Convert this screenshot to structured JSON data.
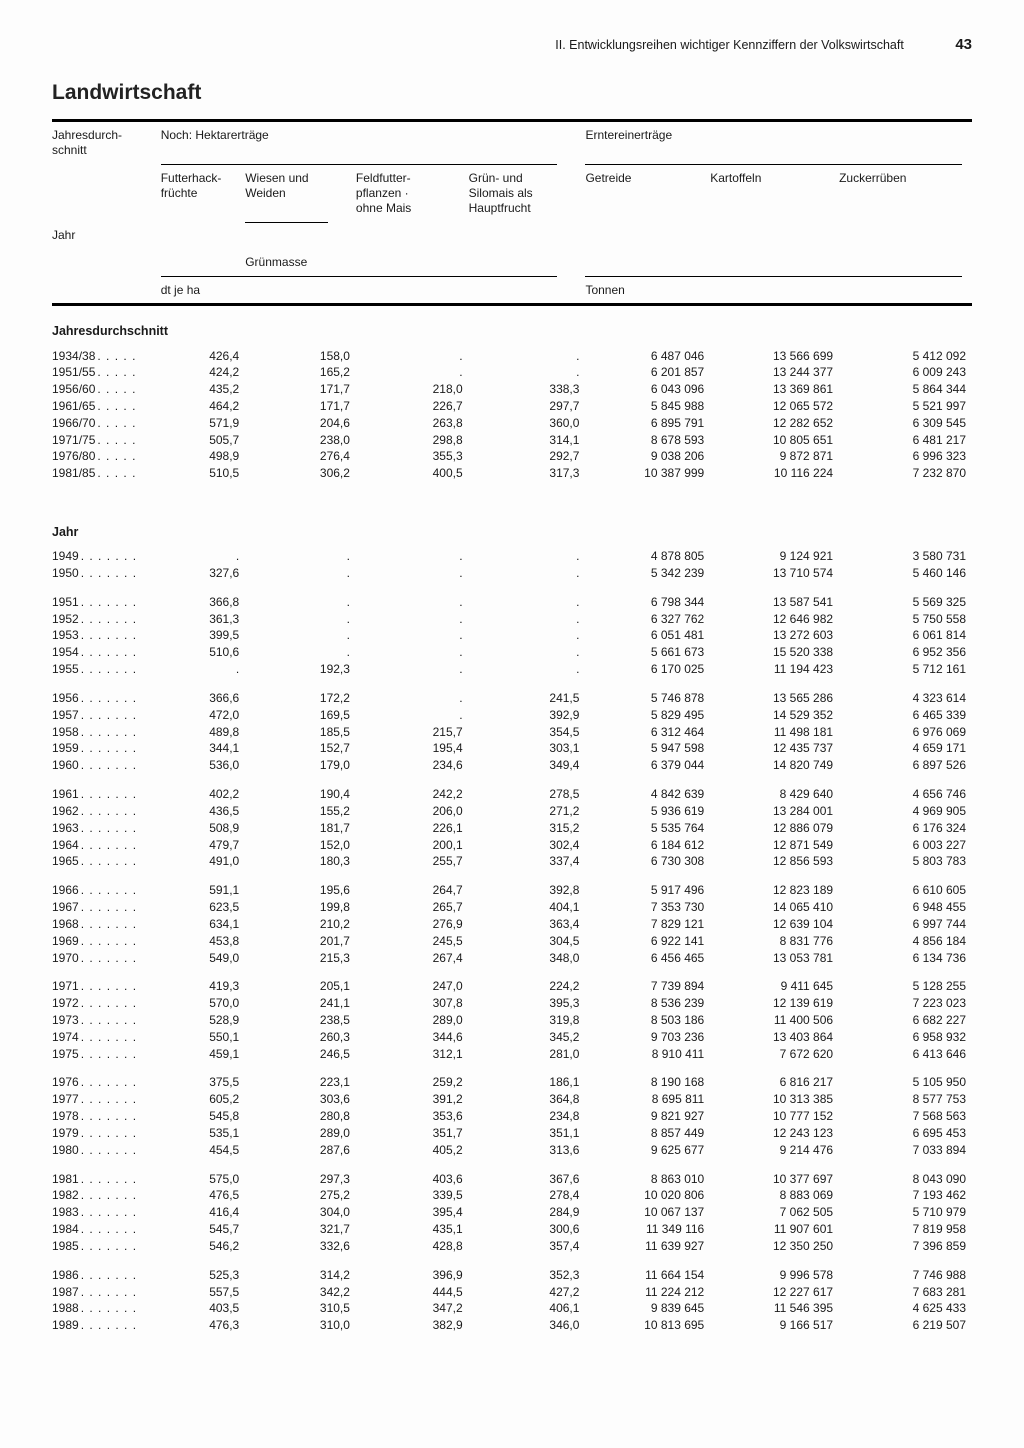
{
  "page": {
    "running_head": "II. Entwicklungsreihen wichtiger Kennziffern der Volkswirtschaft",
    "page_number": "43",
    "title": "Landwirtschaft"
  },
  "headers": {
    "period_label": "Jahresdurch-\nschnitt",
    "year_label": "Jahr",
    "group_left": "Noch: Hektarerträge",
    "group_right": "Erntereinerträge",
    "c1": "Futterhack-\nfrüchte",
    "c2": "Wiesen und\nWeiden",
    "c3": "Feldfutter-\npflanzen ·\nohne Mais",
    "c4": "Grün- und\nSilomais als\nHauptfrucht",
    "c5": "Getreide",
    "c6": "Kartoffeln",
    "c7": "Zuckerrüben",
    "sub2": "Grünmasse",
    "unit_left": "dt je ha",
    "unit_right": "Tonnen"
  },
  "section1": "Jahresdurchschnitt",
  "section2": "Jahr",
  "periods": [
    {
      "label": "1934/38",
      "c1": "426,4",
      "c2": "158,0",
      "c3": ".",
      "c4": ".",
      "c5": "6 487 046",
      "c6": "13 566 699",
      "c7": "5 412 092"
    },
    {
      "label": "1951/55",
      "c1": "424,2",
      "c2": "165,2",
      "c3": ".",
      "c4": ".",
      "c5": "6 201 857",
      "c6": "13 244 377",
      "c7": "6 009 243"
    },
    {
      "label": "1956/60",
      "c1": "435,2",
      "c2": "171,7",
      "c3": "218,0",
      "c4": "338,3",
      "c5": "6 043 096",
      "c6": "13 369 861",
      "c7": "5 864 344"
    },
    {
      "label": "1961/65",
      "c1": "464,2",
      "c2": "171,7",
      "c3": "226,7",
      "c4": "297,7",
      "c5": "5 845 988",
      "c6": "12 065 572",
      "c7": "5 521 997"
    },
    {
      "label": "1966/70",
      "c1": "571,9",
      "c2": "204,6",
      "c3": "263,8",
      "c4": "360,0",
      "c5": "6 895 791",
      "c6": "12 282 652",
      "c7": "6 309 545"
    },
    {
      "label": "1971/75",
      "c1": "505,7",
      "c2": "238,0",
      "c3": "298,8",
      "c4": "314,1",
      "c5": "8 678 593",
      "c6": "10 805 651",
      "c7": "6 481 217"
    },
    {
      "label": "1976/80",
      "c1": "498,9",
      "c2": "276,4",
      "c3": "355,3",
      "c4": "292,7",
      "c5": "9 038 206",
      "c6": "9 872 871",
      "c7": "6 996 323"
    },
    {
      "label": "1981/85",
      "c1": "510,5",
      "c2": "306,2",
      "c3": "400,5",
      "c4": "317,3",
      "c5": "10 387 999",
      "c6": "10 116 224",
      "c7": "7 232 870"
    }
  ],
  "blocks": [
    [
      {
        "label": "1949",
        "c1": ".",
        "c2": ".",
        "c3": ".",
        "c4": ".",
        "c5": "4 878 805",
        "c6": "9 124 921",
        "c7": "3 580 731"
      },
      {
        "label": "1950",
        "c1": "327,6",
        "c2": ".",
        "c3": ".",
        "c4": ".",
        "c5": "5 342 239",
        "c6": "13 710 574",
        "c7": "5 460 146"
      }
    ],
    [
      {
        "label": "1951",
        "c1": "366,8",
        "c2": ".",
        "c3": ".",
        "c4": ".",
        "c5": "6 798 344",
        "c6": "13 587 541",
        "c7": "5 569 325"
      },
      {
        "label": "1952",
        "c1": "361,3",
        "c2": ".",
        "c3": ".",
        "c4": ".",
        "c5": "6 327 762",
        "c6": "12 646 982",
        "c7": "5 750 558"
      },
      {
        "label": "1953",
        "c1": "399,5",
        "c2": ".",
        "c3": ".",
        "c4": ".",
        "c5": "6 051 481",
        "c6": "13 272 603",
        "c7": "6 061 814"
      },
      {
        "label": "1954",
        "c1": "510,6",
        "c2": ".",
        "c3": ".",
        "c4": ".",
        "c5": "5 661 673",
        "c6": "15 520 338",
        "c7": "6 952 356"
      },
      {
        "label": "1955",
        "c1": ".",
        "c2": "192,3",
        "c3": ".",
        "c4": ".",
        "c5": "6 170 025",
        "c6": "11 194 423",
        "c7": "5 712 161"
      }
    ],
    [
      {
        "label": "1956",
        "c1": "366,6",
        "c2": "172,2",
        "c3": ".",
        "c4": "241,5",
        "c5": "5 746 878",
        "c6": "13 565 286",
        "c7": "4 323 614"
      },
      {
        "label": "1957",
        "c1": "472,0",
        "c2": "169,5",
        "c3": ".",
        "c4": "392,9",
        "c5": "5 829 495",
        "c6": "14 529 352",
        "c7": "6 465 339"
      },
      {
        "label": "1958",
        "c1": "489,8",
        "c2": "185,5",
        "c3": "215,7",
        "c4": "354,5",
        "c5": "6 312 464",
        "c6": "11 498 181",
        "c7": "6 976 069"
      },
      {
        "label": "1959",
        "c1": "344,1",
        "c2": "152,7",
        "c3": "195,4",
        "c4": "303,1",
        "c5": "5 947 598",
        "c6": "12 435 737",
        "c7": "4 659 171"
      },
      {
        "label": "1960",
        "c1": "536,0",
        "c2": "179,0",
        "c3": "234,6",
        "c4": "349,4",
        "c5": "6 379 044",
        "c6": "14 820 749",
        "c7": "6 897 526"
      }
    ],
    [
      {
        "label": "1961",
        "c1": "402,2",
        "c2": "190,4",
        "c3": "242,2",
        "c4": "278,5",
        "c5": "4 842 639",
        "c6": "8 429 640",
        "c7": "4 656 746"
      },
      {
        "label": "1962",
        "c1": "436,5",
        "c2": "155,2",
        "c3": "206,0",
        "c4": "271,2",
        "c5": "5 936 619",
        "c6": "13 284 001",
        "c7": "4 969 905"
      },
      {
        "label": "1963",
        "c1": "508,9",
        "c2": "181,7",
        "c3": "226,1",
        "c4": "315,2",
        "c5": "5 535 764",
        "c6": "12 886 079",
        "c7": "6 176 324"
      },
      {
        "label": "1964",
        "c1": "479,7",
        "c2": "152,0",
        "c3": "200,1",
        "c4": "302,4",
        "c5": "6 184 612",
        "c6": "12 871 549",
        "c7": "6 003 227"
      },
      {
        "label": "1965",
        "c1": "491,0",
        "c2": "180,3",
        "c3": "255,7",
        "c4": "337,4",
        "c5": "6 730 308",
        "c6": "12 856 593",
        "c7": "5 803 783"
      }
    ],
    [
      {
        "label": "1966",
        "c1": "591,1",
        "c2": "195,6",
        "c3": "264,7",
        "c4": "392,8",
        "c5": "5 917 496",
        "c6": "12 823 189",
        "c7": "6 610 605"
      },
      {
        "label": "1967",
        "c1": "623,5",
        "c2": "199,8",
        "c3": "265,7",
        "c4": "404,1",
        "c5": "7 353 730",
        "c6": "14 065 410",
        "c7": "6 948 455"
      },
      {
        "label": "1968",
        "c1": "634,1",
        "c2": "210,2",
        "c3": "276,9",
        "c4": "363,4",
        "c5": "7 829 121",
        "c6": "12 639 104",
        "c7": "6 997 744"
      },
      {
        "label": "1969",
        "c1": "453,8",
        "c2": "201,7",
        "c3": "245,5",
        "c4": "304,5",
        "c5": "6 922 141",
        "c6": "8 831 776",
        "c7": "4 856 184"
      },
      {
        "label": "1970",
        "c1": "549,0",
        "c2": "215,3",
        "c3": "267,4",
        "c4": "348,0",
        "c5": "6 456 465",
        "c6": "13 053 781",
        "c7": "6 134 736"
      }
    ],
    [
      {
        "label": "1971",
        "c1": "419,3",
        "c2": "205,1",
        "c3": "247,0",
        "c4": "224,2",
        "c5": "7 739 894",
        "c6": "9 411 645",
        "c7": "5 128 255"
      },
      {
        "label": "1972",
        "c1": "570,0",
        "c2": "241,1",
        "c3": "307,8",
        "c4": "395,3",
        "c5": "8 536 239",
        "c6": "12 139 619",
        "c7": "7 223 023"
      },
      {
        "label": "1973",
        "c1": "528,9",
        "c2": "238,5",
        "c3": "289,0",
        "c4": "319,8",
        "c5": "8 503 186",
        "c6": "11 400 506",
        "c7": "6 682 227"
      },
      {
        "label": "1974",
        "c1": "550,1",
        "c2": "260,3",
        "c3": "344,6",
        "c4": "345,2",
        "c5": "9 703 236",
        "c6": "13 403 864",
        "c7": "6 958 932"
      },
      {
        "label": "1975",
        "c1": "459,1",
        "c2": "246,5",
        "c3": "312,1",
        "c4": "281,0",
        "c5": "8 910 411",
        "c6": "7 672 620",
        "c7": "6 413 646"
      }
    ],
    [
      {
        "label": "1976",
        "c1": "375,5",
        "c2": "223,1",
        "c3": "259,2",
        "c4": "186,1",
        "c5": "8 190 168",
        "c6": "6 816 217",
        "c7": "5 105 950"
      },
      {
        "label": "1977",
        "c1": "605,2",
        "c2": "303,6",
        "c3": "391,2",
        "c4": "364,8",
        "c5": "8 695 811",
        "c6": "10 313 385",
        "c7": "8 577 753"
      },
      {
        "label": "1978",
        "c1": "545,8",
        "c2": "280,8",
        "c3": "353,6",
        "c4": "234,8",
        "c5": "9 821 927",
        "c6": "10 777 152",
        "c7": "7 568 563"
      },
      {
        "label": "1979",
        "c1": "535,1",
        "c2": "289,0",
        "c3": "351,7",
        "c4": "351,1",
        "c5": "8 857 449",
        "c6": "12 243 123",
        "c7": "6 695 453"
      },
      {
        "label": "1980",
        "c1": "454,5",
        "c2": "287,6",
        "c3": "405,2",
        "c4": "313,6",
        "c5": "9 625 677",
        "c6": "9 214 476",
        "c7": "7 033 894"
      }
    ],
    [
      {
        "label": "1981",
        "c1": "575,0",
        "c2": "297,3",
        "c3": "403,6",
        "c4": "367,6",
        "c5": "8 863 010",
        "c6": "10 377 697",
        "c7": "8 043 090"
      },
      {
        "label": "1982",
        "c1": "476,5",
        "c2": "275,2",
        "c3": "339,5",
        "c4": "278,4",
        "c5": "10 020 806",
        "c6": "8 883 069",
        "c7": "7 193 462"
      },
      {
        "label": "1983",
        "c1": "416,4",
        "c2": "304,0",
        "c3": "395,4",
        "c4": "284,9",
        "c5": "10 067 137",
        "c6": "7 062 505",
        "c7": "5 710 979"
      },
      {
        "label": "1984",
        "c1": "545,7",
        "c2": "321,7",
        "c3": "435,1",
        "c4": "300,6",
        "c5": "11 349 116",
        "c6": "11 907 601",
        "c7": "7 819 958"
      },
      {
        "label": "1985",
        "c1": "546,2",
        "c2": "332,6",
        "c3": "428,8",
        "c4": "357,4",
        "c5": "11 639 927",
        "c6": "12 350 250",
        "c7": "7 396 859"
      }
    ],
    [
      {
        "label": "1986",
        "c1": "525,3",
        "c2": "314,2",
        "c3": "396,9",
        "c4": "352,3",
        "c5": "11 664 154",
        "c6": "9 996 578",
        "c7": "7 746 988"
      },
      {
        "label": "1987",
        "c1": "557,5",
        "c2": "342,2",
        "c3": "444,5",
        "c4": "427,2",
        "c5": "11 224 212",
        "c6": "12 227 617",
        "c7": "7 683 281"
      },
      {
        "label": "1988",
        "c1": "403,5",
        "c2": "310,5",
        "c3": "347,2",
        "c4": "406,1",
        "c5": "9 839 645",
        "c6": "11 546 395",
        "c7": "4 625 433"
      },
      {
        "label": "1989",
        "c1": "476,3",
        "c2": "310,0",
        "c3": "382,9",
        "c4": "346,0",
        "c5": "10 813 695",
        "c6": "9 166 517",
        "c7": "6 219 507"
      }
    ]
  ]
}
